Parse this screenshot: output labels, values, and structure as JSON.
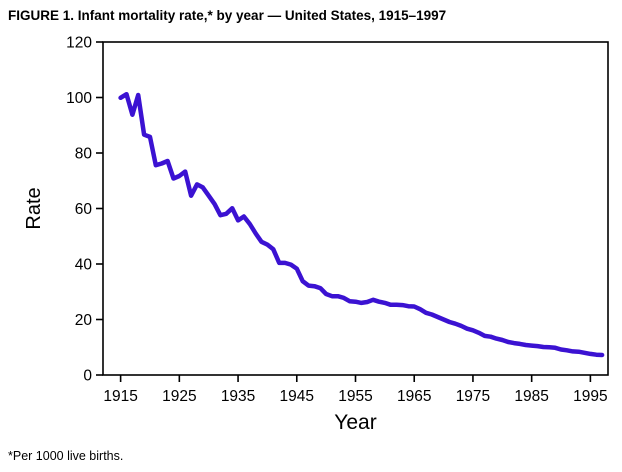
{
  "page": {
    "title": "FIGURE 1. Infant mortality rate,* by year — United States, 1915–1997",
    "footnote": "*Per 1000 live births."
  },
  "chart_data": {
    "type": "line",
    "title": "FIGURE 1. Infant mortality rate,* by year — United States, 1915–1997",
    "xlabel": "Year",
    "ylabel": "Rate",
    "xlim": [
      1912,
      1998
    ],
    "ylim": [
      0,
      120
    ],
    "xticks": [
      1915,
      1925,
      1935,
      1945,
      1955,
      1965,
      1975,
      1985,
      1995
    ],
    "yticks": [
      0,
      20,
      40,
      60,
      80,
      100,
      120
    ],
    "grid": false,
    "legend": "none",
    "line_color": "#3b12d2",
    "line_width": 4.5,
    "axis_color": "#000000",
    "x": [
      1915,
      1916,
      1917,
      1918,
      1919,
      1920,
      1921,
      1922,
      1923,
      1924,
      1925,
      1926,
      1927,
      1928,
      1929,
      1930,
      1931,
      1932,
      1933,
      1934,
      1935,
      1936,
      1937,
      1938,
      1939,
      1940,
      1941,
      1942,
      1943,
      1944,
      1945,
      1946,
      1947,
      1948,
      1949,
      1950,
      1951,
      1952,
      1953,
      1954,
      1955,
      1956,
      1957,
      1958,
      1959,
      1960,
      1961,
      1962,
      1963,
      1964,
      1965,
      1966,
      1967,
      1968,
      1969,
      1970,
      1971,
      1972,
      1973,
      1974,
      1975,
      1976,
      1977,
      1978,
      1979,
      1980,
      1981,
      1982,
      1983,
      1984,
      1985,
      1986,
      1987,
      1988,
      1989,
      1990,
      1991,
      1992,
      1993,
      1994,
      1995,
      1996,
      1997
    ],
    "values": [
      99.9,
      101.2,
      93.8,
      100.9,
      86.6,
      85.8,
      75.6,
      76.2,
      77.1,
      70.8,
      71.7,
      73.3,
      64.6,
      68.7,
      67.6,
      64.6,
      61.6,
      57.6,
      58.1,
      60.1,
      55.7,
      57.1,
      54.4,
      51.0,
      48.0,
      47.0,
      45.3,
      40.4,
      40.4,
      39.8,
      38.3,
      33.8,
      32.2,
      32.0,
      31.3,
      29.2,
      28.4,
      28.4,
      27.8,
      26.6,
      26.4,
      26.0,
      26.3,
      27.1,
      26.4,
      26.0,
      25.3,
      25.3,
      25.2,
      24.8,
      24.7,
      23.7,
      22.4,
      21.8,
      20.9,
      20.0,
      19.1,
      18.5,
      17.7,
      16.7,
      16.1,
      15.2,
      14.1,
      13.8,
      13.1,
      12.6,
      11.9,
      11.5,
      11.2,
      10.8,
      10.6,
      10.4,
      10.1,
      10.0,
      9.8,
      9.2,
      8.9,
      8.5,
      8.4,
      8.0,
      7.6,
      7.3,
      7.2
    ]
  }
}
